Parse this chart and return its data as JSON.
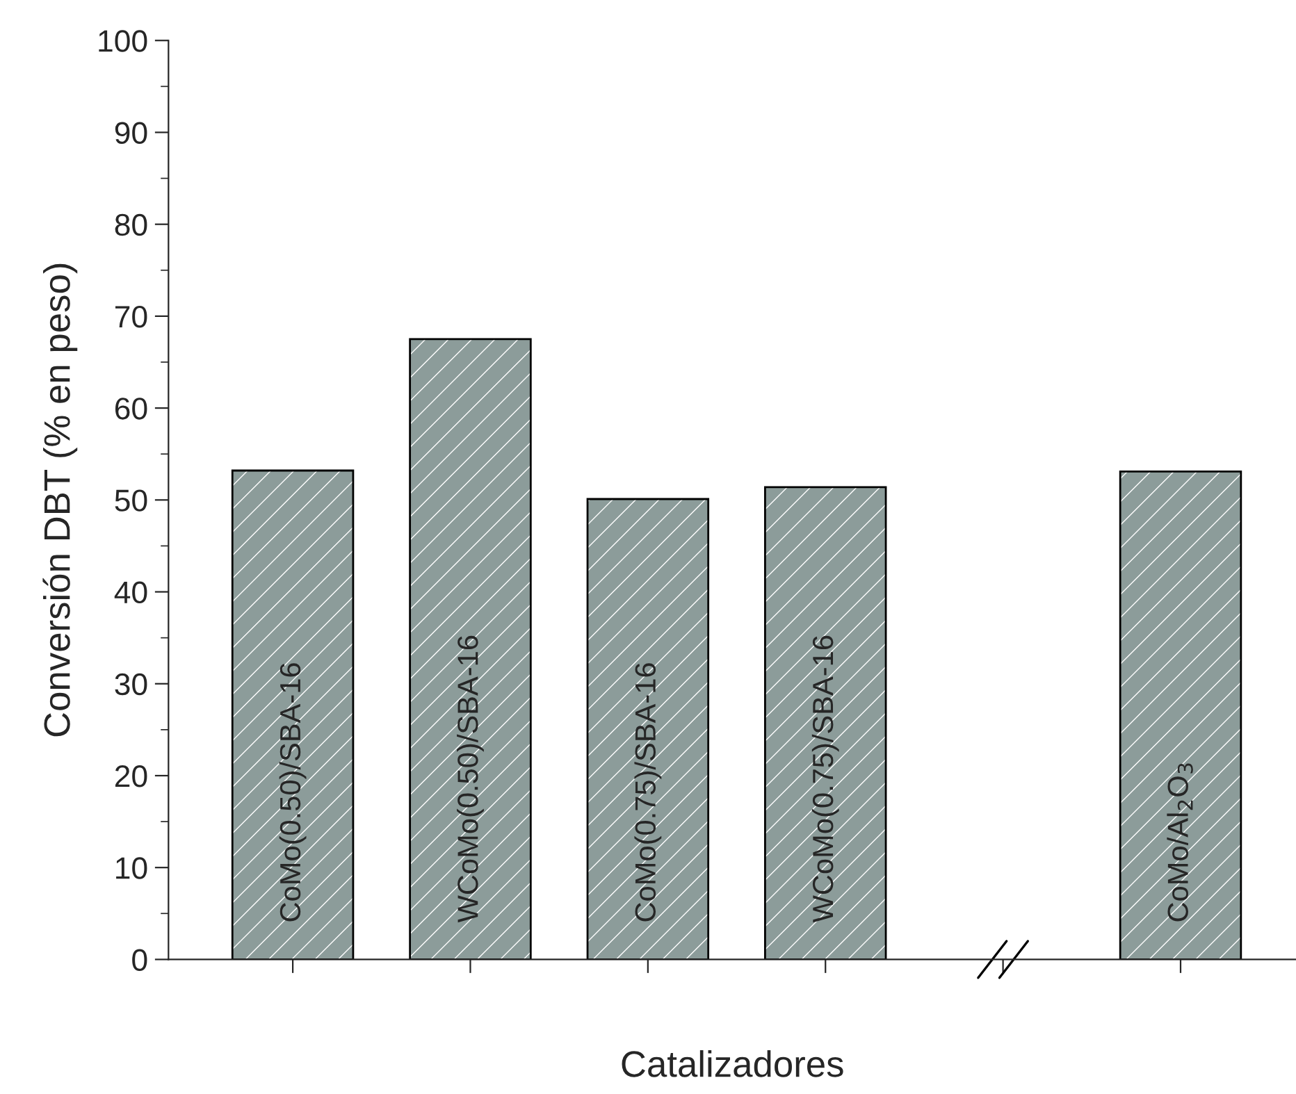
{
  "chart_data": {
    "type": "bar",
    "ylabel": "Conversión DBT (% en peso)",
    "xlabel": "Catalizadores",
    "categories": [
      "CoMo(0.50)/SBA-16",
      "WCoMo(0.50)/SBA-16",
      "CoMo(0.75)/SBA-16",
      "WCoMo(0.75)/SBA-16",
      null,
      "CoMo/Al$_{2}$O$_{3}$"
    ],
    "values": [
      53.2,
      67.5,
      50.1,
      51.4,
      null,
      53.1
    ],
    "color": "#8c9c9a",
    "ylim": [
      0,
      100
    ],
    "yticks": [
      0,
      10,
      20,
      30,
      40,
      50,
      60,
      70,
      80,
      90,
      100
    ],
    "tick_labels": "y",
    "grid": false,
    "legend": false
  }
}
